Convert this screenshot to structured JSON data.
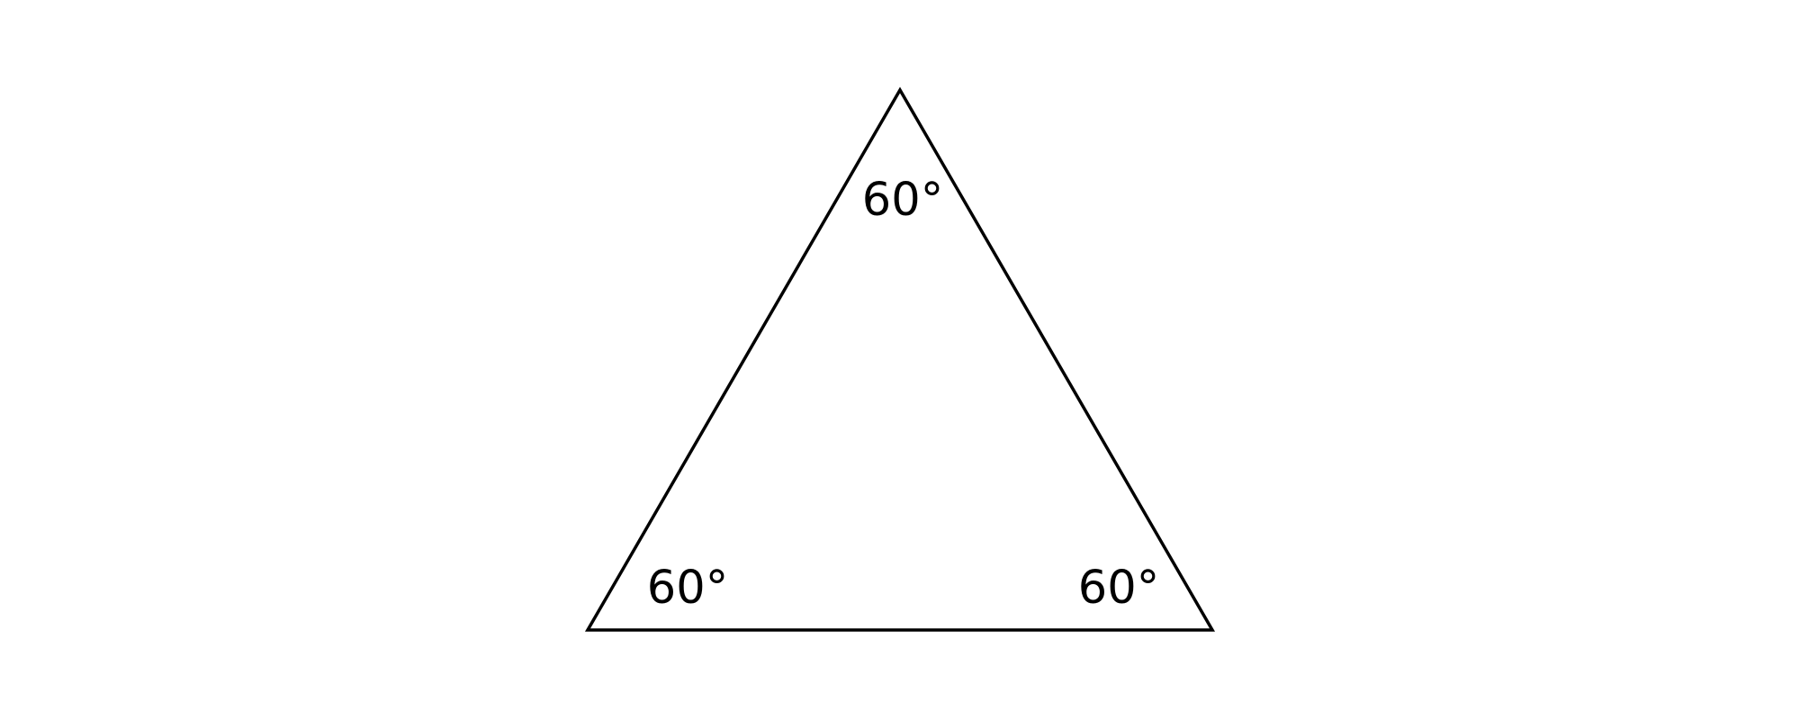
{
  "diagram": {
    "shape": "equilateral-triangle",
    "stroke_color": "#000000",
    "background_color": "#ffffff",
    "angles": {
      "top": "60°",
      "bottom_left": "60°",
      "bottom_right": "60°"
    }
  }
}
